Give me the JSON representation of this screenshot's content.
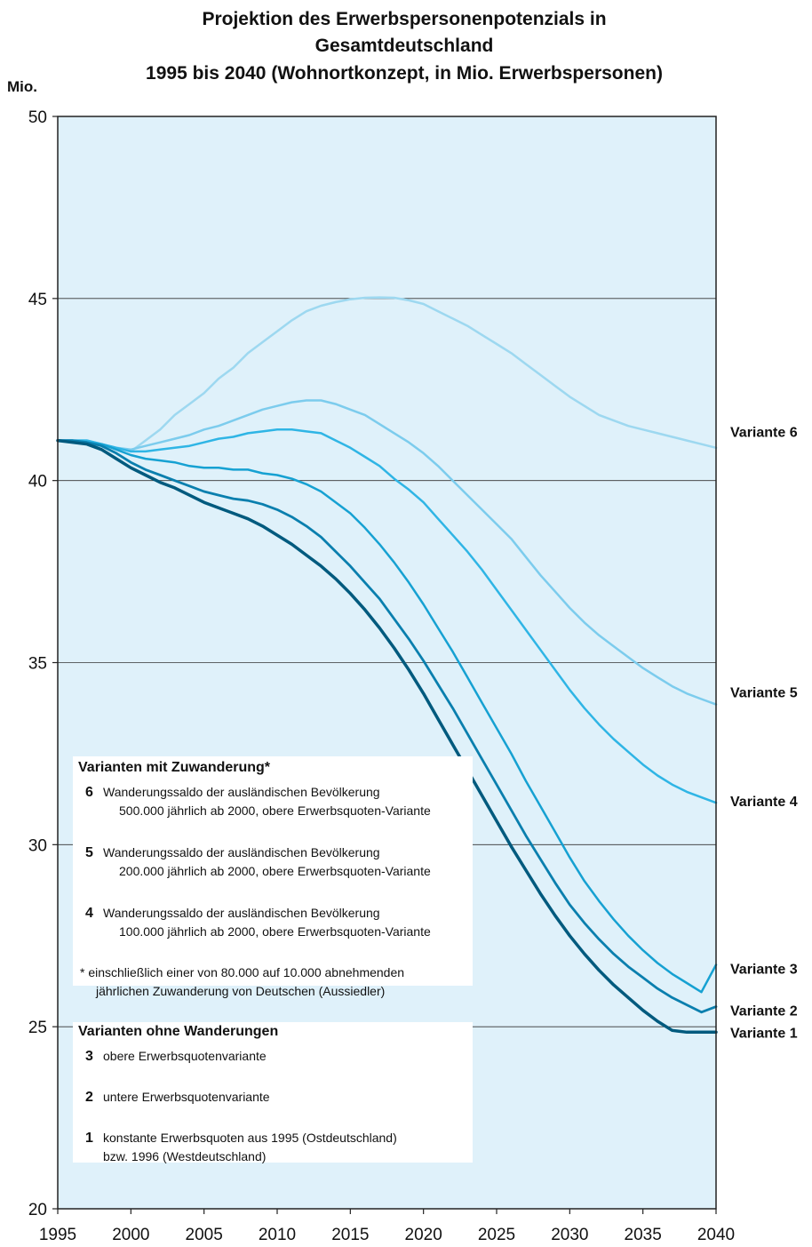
{
  "chart_data": {
    "type": "line",
    "title": [
      "Projektion des Erwerbspersonenpotenzials in",
      "Gesamtdeutschland",
      "1995 bis 2040 (Wohnortkonzept, in Mio. Erwerbspersonen)"
    ],
    "ylabel": "Mio.",
    "xlabel": "",
    "xlim": [
      1995,
      2040
    ],
    "ylim": [
      20,
      50
    ],
    "x_ticks": [
      "1995",
      "2000",
      "2005",
      "2010",
      "2015",
      "2020",
      "2025",
      "2030",
      "2035",
      "2040"
    ],
    "y_ticks": [
      "20",
      "25",
      "30",
      "35",
      "40",
      "45",
      "50"
    ],
    "grid": "horizontal",
    "background": "#dff1fa",
    "x": [
      1995,
      1996,
      1997,
      1998,
      1999,
      2000,
      2001,
      2002,
      2003,
      2004,
      2005,
      2006,
      2007,
      2008,
      2009,
      2010,
      2011,
      2012,
      2013,
      2014,
      2015,
      2016,
      2017,
      2018,
      2019,
      2020,
      2021,
      2022,
      2023,
      2024,
      2025,
      2026,
      2027,
      2028,
      2029,
      2030,
      2031,
      2032,
      2033,
      2034,
      2035,
      2036,
      2037,
      2038,
      2039,
      2040
    ],
    "series": [
      {
        "name": "Variante 6",
        "color": "#9dd8f0",
        "width": 2.5,
        "values": [
          41.1,
          41.1,
          41.1,
          41.0,
          40.9,
          40.8,
          41.1,
          41.4,
          41.8,
          42.1,
          42.4,
          42.8,
          43.1,
          43.5,
          43.8,
          44.1,
          44.4,
          44.65,
          44.8,
          44.9,
          44.98,
          45.02,
          45.03,
          45.02,
          44.95,
          44.85,
          44.65,
          44.45,
          44.25,
          44.0,
          43.75,
          43.5,
          43.2,
          42.9,
          42.6,
          42.3,
          42.05,
          41.8,
          41.65,
          41.5,
          41.4,
          41.3,
          41.2,
          41.1,
          41.0,
          40.9
        ]
      },
      {
        "name": "Variante 5",
        "color": "#7ccced",
        "width": 2.5,
        "values": [
          41.1,
          41.1,
          41.1,
          41.0,
          40.9,
          40.85,
          40.95,
          41.05,
          41.15,
          41.25,
          41.4,
          41.5,
          41.65,
          41.8,
          41.95,
          42.05,
          42.15,
          42.2,
          42.2,
          42.1,
          41.95,
          41.8,
          41.55,
          41.3,
          41.05,
          40.75,
          40.4,
          40.0,
          39.6,
          39.2,
          38.8,
          38.4,
          37.9,
          37.4,
          36.95,
          36.5,
          36.1,
          35.75,
          35.45,
          35.15,
          34.85,
          34.6,
          34.35,
          34.15,
          34.0,
          33.85
        ]
      },
      {
        "name": "Variante 4",
        "color": "#2fb5e5",
        "width": 2.5,
        "values": [
          41.1,
          41.1,
          41.1,
          41.0,
          40.9,
          40.8,
          40.8,
          40.85,
          40.9,
          40.95,
          41.05,
          41.15,
          41.2,
          41.3,
          41.35,
          41.4,
          41.4,
          41.35,
          41.3,
          41.1,
          40.9,
          40.65,
          40.4,
          40.05,
          39.75,
          39.4,
          38.95,
          38.5,
          38.05,
          37.55,
          37.0,
          36.45,
          35.9,
          35.35,
          34.8,
          34.25,
          33.75,
          33.3,
          32.9,
          32.55,
          32.2,
          31.9,
          31.65,
          31.45,
          31.3,
          31.15
        ]
      },
      {
        "name": "Variante 3",
        "color": "#16a1d2",
        "width": 2.5,
        "values": [
          41.1,
          41.1,
          41.05,
          41.0,
          40.85,
          40.7,
          40.6,
          40.55,
          40.5,
          40.4,
          40.35,
          40.35,
          40.3,
          40.3,
          40.2,
          40.15,
          40.05,
          39.9,
          39.7,
          39.4,
          39.1,
          38.7,
          38.25,
          37.75,
          37.2,
          36.6,
          35.95,
          35.3,
          34.6,
          33.9,
          33.2,
          32.5,
          31.75,
          31.05,
          30.35,
          29.65,
          29.0,
          28.45,
          27.95,
          27.5,
          27.1,
          26.75,
          26.45,
          26.2,
          25.95,
          26.7
        ]
      },
      {
        "name": "Variante 2",
        "color": "#0a7fae",
        "width": 2.8,
        "values": [
          41.1,
          41.1,
          41.05,
          40.95,
          40.75,
          40.5,
          40.3,
          40.15,
          40.0,
          39.85,
          39.7,
          39.6,
          39.5,
          39.45,
          39.35,
          39.2,
          39.0,
          38.75,
          38.45,
          38.05,
          37.65,
          37.2,
          36.75,
          36.2,
          35.65,
          35.05,
          34.4,
          33.75,
          33.05,
          32.35,
          31.65,
          30.95,
          30.25,
          29.6,
          28.95,
          28.35,
          27.85,
          27.4,
          27.0,
          26.65,
          26.35,
          26.05,
          25.8,
          25.6,
          25.4,
          25.55
        ]
      },
      {
        "name": "Variante 1",
        "color": "#005a7e",
        "width": 3.5,
        "values": [
          41.1,
          41.05,
          41.0,
          40.85,
          40.6,
          40.35,
          40.15,
          39.95,
          39.8,
          39.6,
          39.4,
          39.25,
          39.1,
          38.95,
          38.75,
          38.5,
          38.25,
          37.95,
          37.65,
          37.3,
          36.9,
          36.45,
          35.95,
          35.4,
          34.8,
          34.15,
          33.45,
          32.75,
          32.05,
          31.35,
          30.65,
          29.95,
          29.3,
          28.65,
          28.05,
          27.5,
          27.0,
          26.55,
          26.15,
          25.8,
          25.45,
          25.15,
          24.9,
          24.85,
          24.85,
          24.85
        ]
      }
    ],
    "end_labels": [
      {
        "text": "Variante 6",
        "y": 41.35
      },
      {
        "text": "Variante 5",
        "y": 34.2
      },
      {
        "text": "Variante 4",
        "y": 31.2
      },
      {
        "text": "Variante 3",
        "y": 26.6
      },
      {
        "text": "Variante 2",
        "y": 25.45
      },
      {
        "text": "Variante 1",
        "y": 24.85
      }
    ]
  },
  "legend": {
    "heading_with": "Varianten mit Zuwanderung*",
    "items_with": [
      {
        "num": "6",
        "line1": "Wanderungssaldo der ausländischen Bevölkerung",
        "line2": "500.000 jährlich ab 2000, obere Erwerbsquoten-Variante"
      },
      {
        "num": "5",
        "line1": "Wanderungssaldo der ausländischen Bevölkerung",
        "line2": "200.000 jährlich ab 2000, obere Erwerbsquoten-Variante"
      },
      {
        "num": "4",
        "line1": "Wanderungssaldo der ausländischen Bevölkerung",
        "line2": "100.000 jährlich ab 2000, obere Erwerbsquoten-Variante"
      }
    ],
    "note_line1": "*  einschließlich einer von 80.000 auf 10.000 abnehmenden",
    "note_line2": "jährlichen Zuwanderung von Deutschen (Aussiedler)",
    "heading_without": "Varianten ohne Wanderungen",
    "items_without": [
      {
        "num": "3",
        "line1": "obere Erwerbsquotenvariante",
        "line2": ""
      },
      {
        "num": "2",
        "line1": "untere Erwerbsquotenvariante",
        "line2": ""
      },
      {
        "num": "1",
        "line1": "konstante Erwerbsquoten aus 1995 (Ostdeutschland)",
        "line2": "bzw. 1996 (Westdeutschland)"
      }
    ]
  }
}
